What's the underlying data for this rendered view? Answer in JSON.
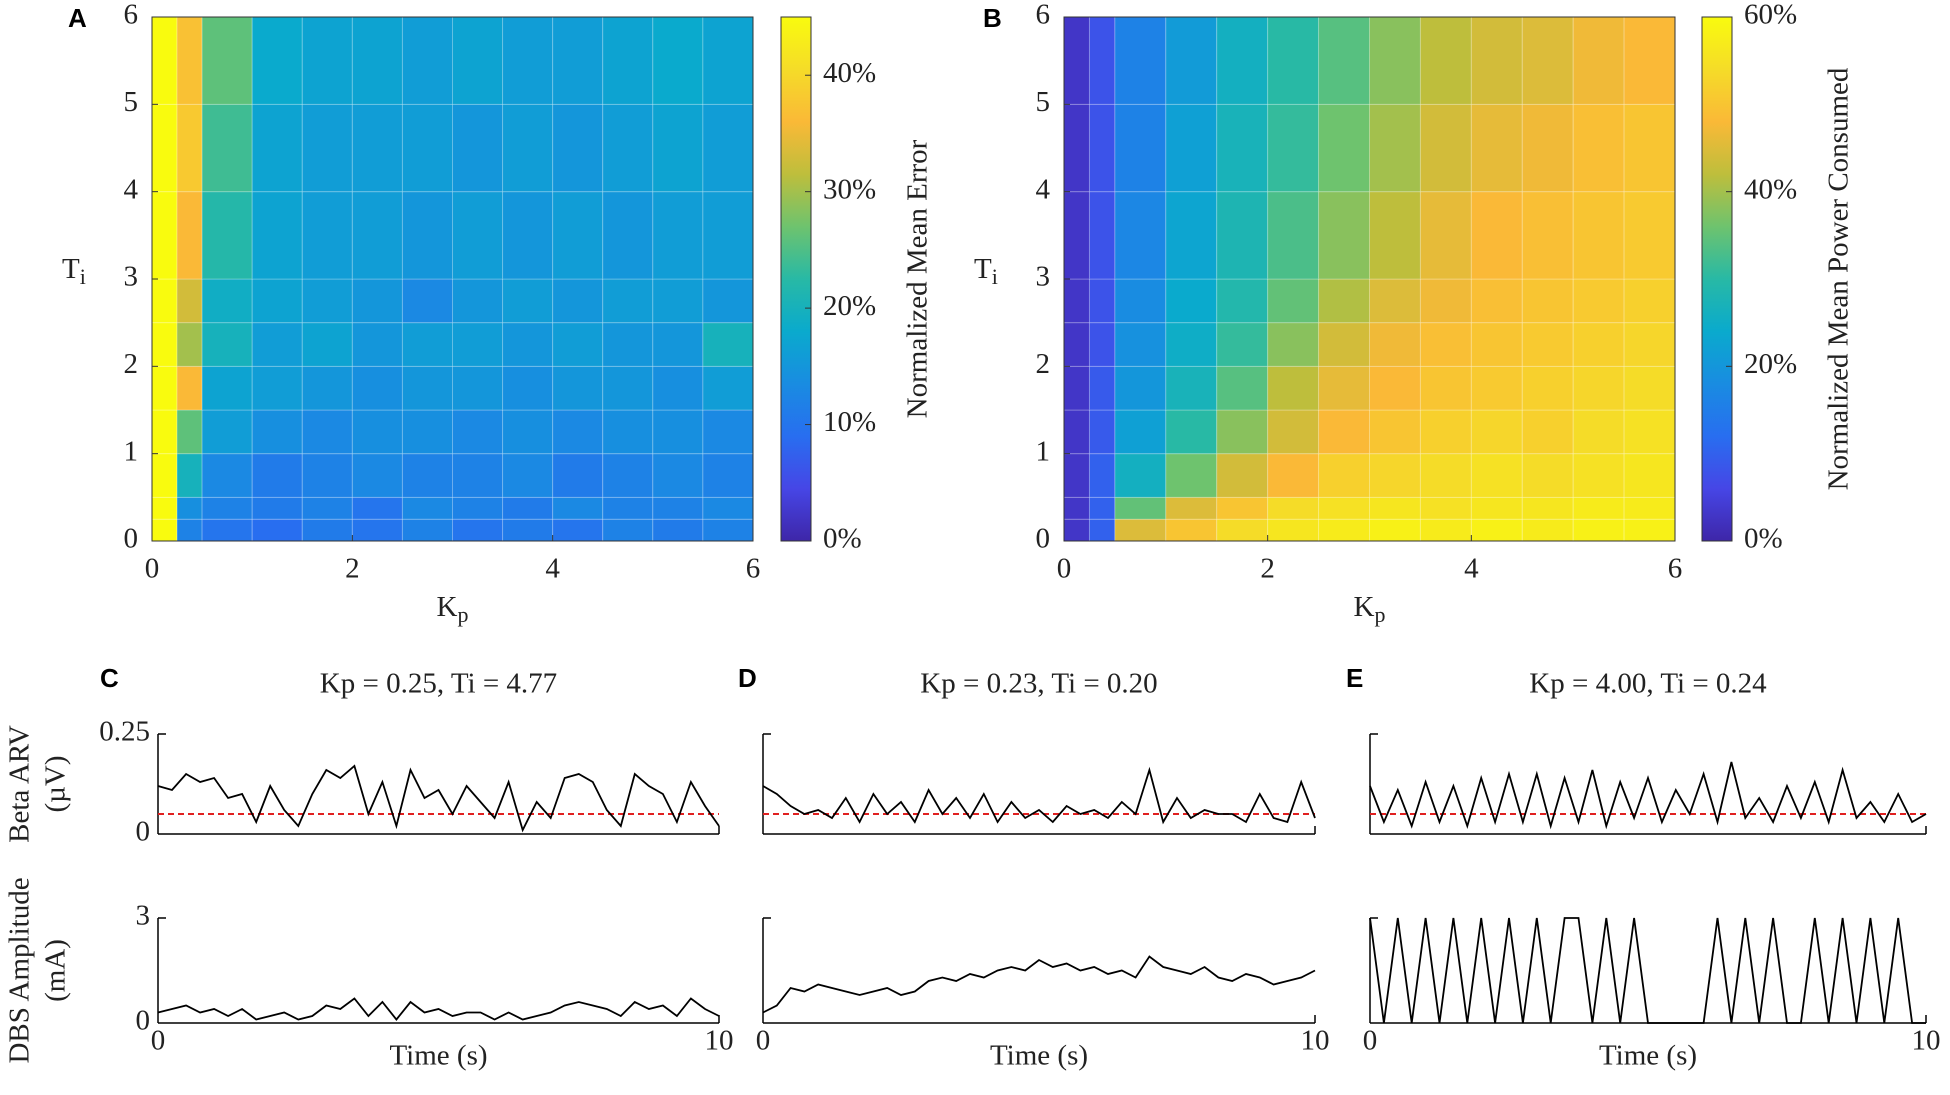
{
  "chart_data": [
    {
      "type": "heatmap",
      "panel": "A",
      "xlabel_base": "K",
      "xlabel_sub": "p",
      "ylabel_base": "T",
      "ylabel_sub": "i",
      "xbins": [
        0,
        0.25,
        0.5,
        1,
        1.5,
        2,
        2.5,
        3,
        3.5,
        4,
        4.5,
        5,
        5.5,
        6
      ],
      "ybins": [
        0,
        0.25,
        0.5,
        1,
        1.5,
        2,
        2.5,
        3,
        4,
        5,
        6
      ],
      "xlim": [
        0,
        6
      ],
      "ylim": [
        0,
        6
      ],
      "xticks": [
        0,
        2,
        4,
        6
      ],
      "yticks": [
        0,
        1,
        2,
        3,
        4,
        5,
        6
      ],
      "clim": [
        0,
        45
      ],
      "colorbar_label": "Normalized Mean Error",
      "cticks": [
        {
          "value": 0,
          "label": "0%"
        },
        {
          "value": 10,
          "label": "10%"
        },
        {
          "value": 20,
          "label": "20%"
        },
        {
          "value": 30,
          "label": "30%"
        },
        {
          "value": 40,
          "label": "40%"
        }
      ],
      "values": [
        [
          45,
          12,
          10,
          9,
          11,
          10,
          12,
          10,
          11,
          10,
          12,
          11,
          12
        ],
        [
          45,
          14,
          12,
          11,
          12,
          10,
          13,
          12,
          11,
          13,
          12,
          12,
          13
        ],
        [
          45,
          20,
          13,
          11,
          12,
          13,
          12,
          12,
          13,
          11,
          12,
          13,
          12
        ],
        [
          45,
          26,
          16,
          14,
          13,
          14,
          14,
          13,
          14,
          13,
          14,
          14,
          13
        ],
        [
          45,
          36,
          17,
          16,
          15,
          14,
          15,
          15,
          14,
          15,
          15,
          14,
          16
        ],
        [
          45,
          30,
          20,
          16,
          17,
          15,
          16,
          16,
          15,
          16,
          15,
          15,
          20
        ],
        [
          45,
          33,
          19,
          17,
          16,
          15,
          13,
          15,
          16,
          15,
          16,
          16,
          15
        ],
        [
          45,
          36,
          22,
          17,
          16,
          16,
          15,
          16,
          15,
          16,
          15,
          16,
          16
        ],
        [
          45,
          38,
          24,
          17,
          16,
          16,
          16,
          15,
          16,
          15,
          16,
          17,
          16
        ],
        [
          45,
          37,
          26,
          18,
          17,
          17,
          16,
          17,
          16,
          16,
          17,
          18,
          17
        ]
      ]
    },
    {
      "type": "heatmap",
      "panel": "B",
      "xlabel_base": "K",
      "xlabel_sub": "p",
      "ylabel_base": "T",
      "ylabel_sub": "i",
      "xbins": [
        0,
        0.25,
        0.5,
        1,
        1.5,
        2,
        2.5,
        3,
        3.5,
        4,
        4.5,
        5,
        5.5,
        6
      ],
      "ybins": [
        0,
        0.25,
        0.5,
        1,
        1.5,
        2,
        2.5,
        3,
        4,
        5,
        6
      ],
      "xlim": [
        0,
        6
      ],
      "ylim": [
        0,
        6
      ],
      "xticks": [
        0,
        2,
        4,
        6
      ],
      "yticks": [
        0,
        1,
        2,
        3,
        4,
        5,
        6
      ],
      "clim": [
        0,
        60
      ],
      "colorbar_label": "Normalized Mean Power Consumed",
      "cticks": [
        {
          "value": 0,
          "label": "0%"
        },
        {
          "value": 20,
          "label": "20%"
        },
        {
          "value": 40,
          "label": "40%"
        },
        {
          "value": 60,
          "label": "60%"
        }
      ],
      "values": [
        [
          3,
          10,
          45,
          50,
          54,
          56,
          57,
          58,
          57,
          58,
          57,
          58,
          58
        ],
        [
          3,
          10,
          35,
          45,
          50,
          54,
          55,
          56,
          55,
          56,
          56,
          57,
          57
        ],
        [
          3,
          10,
          26,
          36,
          44,
          48,
          52,
          53,
          54,
          55,
          54,
          55,
          56
        ],
        [
          3,
          9,
          22,
          30,
          38,
          44,
          48,
          50,
          52,
          53,
          52,
          54,
          55
        ],
        [
          3,
          9,
          20,
          27,
          34,
          42,
          46,
          48,
          50,
          51,
          52,
          53,
          54
        ],
        [
          3,
          8,
          19,
          25,
          31,
          38,
          44,
          47,
          49,
          50,
          51,
          52,
          53
        ],
        [
          3,
          8,
          18,
          24,
          29,
          35,
          41,
          45,
          47,
          49,
          50,
          51,
          52
        ],
        [
          3,
          8,
          17,
          23,
          28,
          33,
          38,
          42,
          46,
          48,
          49,
          50,
          51
        ],
        [
          3,
          8,
          16,
          22,
          27,
          31,
          36,
          40,
          44,
          46,
          47,
          49,
          50
        ],
        [
          3,
          8,
          16,
          21,
          26,
          30,
          34,
          38,
          42,
          44,
          45,
          47,
          48
        ]
      ]
    },
    {
      "type": "line",
      "panel": "C",
      "title": "Kp = 0.25, Ti = 4.77",
      "xlabel": "Time (s)",
      "xlim": [
        0,
        10
      ],
      "xticks": [
        0,
        10
      ],
      "x": [
        0,
        0.25,
        0.5,
        0.75,
        1,
        1.25,
        1.5,
        1.75,
        2,
        2.25,
        2.5,
        2.75,
        3,
        3.25,
        3.5,
        3.75,
        4,
        4.25,
        4.5,
        4.75,
        5,
        5.25,
        5.5,
        5.75,
        6,
        6.25,
        6.5,
        6.75,
        7,
        7.25,
        7.5,
        7.75,
        8,
        8.25,
        8.5,
        8.75,
        9,
        9.25,
        9.5,
        9.75,
        10
      ],
      "rows": [
        {
          "ylabel": [
            "Beta ARV",
            "(µV)"
          ],
          "ylim": [
            0,
            0.25
          ],
          "yticks": [
            0,
            0.25
          ],
          "threshold": 0.05,
          "threshold_color": "#e02020",
          "series": [
            {
              "color": "#000000",
              "values": [
                0.12,
                0.11,
                0.15,
                0.13,
                0.14,
                0.09,
                0.1,
                0.03,
                0.12,
                0.06,
                0.02,
                0.1,
                0.16,
                0.14,
                0.17,
                0.05,
                0.13,
                0.02,
                0.16,
                0.09,
                0.11,
                0.05,
                0.12,
                0.08,
                0.04,
                0.13,
                0.01,
                0.08,
                0.04,
                0.14,
                0.15,
                0.13,
                0.06,
                0.02,
                0.15,
                0.12,
                0.1,
                0.03,
                0.13,
                0.07,
                0.02
              ]
            }
          ]
        },
        {
          "ylabel": [
            "DBS Amplitude",
            "(mA)"
          ],
          "ylim": [
            0,
            3
          ],
          "yticks": [
            0,
            3
          ],
          "series": [
            {
              "color": "#000000",
              "values": [
                0.3,
                0.4,
                0.5,
                0.3,
                0.4,
                0.2,
                0.4,
                0.1,
                0.2,
                0.3,
                0.1,
                0.2,
                0.5,
                0.4,
                0.7,
                0.2,
                0.6,
                0.1,
                0.6,
                0.3,
                0.4,
                0.2,
                0.3,
                0.3,
                0.1,
                0.3,
                0.1,
                0.2,
                0.3,
                0.5,
                0.6,
                0.5,
                0.4,
                0.2,
                0.6,
                0.4,
                0.5,
                0.2,
                0.7,
                0.4,
                0.2
              ]
            }
          ]
        }
      ]
    },
    {
      "type": "line",
      "panel": "D",
      "title": "Kp = 0.23, Ti = 0.20",
      "xlabel": "Time (s)",
      "xlim": [
        0,
        10
      ],
      "xticks": [
        0,
        10
      ],
      "x": [
        0,
        0.25,
        0.5,
        0.75,
        1,
        1.25,
        1.5,
        1.75,
        2,
        2.25,
        2.5,
        2.75,
        3,
        3.25,
        3.5,
        3.75,
        4,
        4.25,
        4.5,
        4.75,
        5,
        5.25,
        5.5,
        5.75,
        6,
        6.25,
        6.5,
        6.75,
        7,
        7.25,
        7.5,
        7.75,
        8,
        8.25,
        8.5,
        8.75,
        9,
        9.25,
        9.5,
        9.75,
        10
      ],
      "rows": [
        {
          "ylim": [
            0,
            0.25
          ],
          "threshold": 0.05,
          "threshold_color": "#e02020",
          "series": [
            {
              "color": "#000000",
              "values": [
                0.12,
                0.1,
                0.07,
                0.05,
                0.06,
                0.04,
                0.09,
                0.03,
                0.1,
                0.05,
                0.08,
                0.03,
                0.11,
                0.05,
                0.09,
                0.04,
                0.1,
                0.03,
                0.08,
                0.04,
                0.06,
                0.03,
                0.07,
                0.05,
                0.06,
                0.04,
                0.08,
                0.05,
                0.16,
                0.03,
                0.09,
                0.04,
                0.06,
                0.05,
                0.05,
                0.03,
                0.1,
                0.04,
                0.03,
                0.13,
                0.04
              ]
            }
          ]
        },
        {
          "ylim": [
            0,
            3
          ],
          "series": [
            {
              "color": "#000000",
              "values": [
                0.3,
                0.5,
                1.0,
                0.9,
                1.1,
                1.0,
                0.9,
                0.8,
                0.9,
                1.0,
                0.8,
                0.9,
                1.2,
                1.3,
                1.2,
                1.4,
                1.3,
                1.5,
                1.6,
                1.5,
                1.8,
                1.6,
                1.7,
                1.5,
                1.6,
                1.4,
                1.5,
                1.3,
                1.9,
                1.6,
                1.5,
                1.4,
                1.6,
                1.3,
                1.2,
                1.4,
                1.3,
                1.1,
                1.2,
                1.3,
                1.5
              ]
            }
          ]
        }
      ]
    },
    {
      "type": "line",
      "panel": "E",
      "title": "Kp = 4.00, Ti = 0.24",
      "xlabel": "Time (s)",
      "xlim": [
        0,
        10
      ],
      "xticks": [
        0,
        10
      ],
      "x": [
        0,
        0.25,
        0.5,
        0.75,
        1,
        1.25,
        1.5,
        1.75,
        2,
        2.25,
        2.5,
        2.75,
        3,
        3.25,
        3.5,
        3.75,
        4,
        4.25,
        4.5,
        4.75,
        5,
        5.25,
        5.5,
        5.75,
        6,
        6.25,
        6.5,
        6.75,
        7,
        7.25,
        7.5,
        7.75,
        8,
        8.25,
        8.5,
        8.75,
        9,
        9.25,
        9.5,
        9.75,
        10
      ],
      "rows": [
        {
          "ylim": [
            0,
            0.25
          ],
          "threshold": 0.05,
          "threshold_color": "#e02020",
          "series": [
            {
              "color": "#000000",
              "values": [
                0.12,
                0.03,
                0.11,
                0.02,
                0.13,
                0.03,
                0.12,
                0.02,
                0.14,
                0.03,
                0.15,
                0.03,
                0.15,
                0.02,
                0.14,
                0.03,
                0.16,
                0.02,
                0.13,
                0.04,
                0.14,
                0.03,
                0.11,
                0.05,
                0.15,
                0.03,
                0.18,
                0.04,
                0.09,
                0.03,
                0.12,
                0.04,
                0.13,
                0.03,
                0.16,
                0.04,
                0.08,
                0.03,
                0.1,
                0.03,
                0.05
              ]
            }
          ]
        },
        {
          "ylim": [
            0,
            3
          ],
          "series": [
            {
              "color": "#000000",
              "values": [
                3,
                0,
                3,
                0,
                3,
                0,
                3,
                0,
                3,
                0,
                3,
                0,
                3,
                0,
                3,
                3,
                0,
                3,
                0,
                3,
                0,
                0,
                0,
                0,
                0,
                3,
                0,
                3,
                0,
                3,
                0,
                0,
                3,
                0,
                3,
                0,
                3,
                0,
                3,
                0,
                0
              ]
            }
          ]
        }
      ]
    }
  ]
}
